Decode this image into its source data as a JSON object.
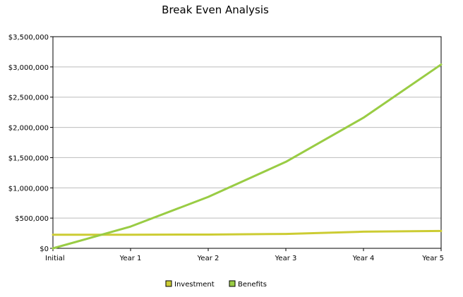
{
  "chart_data": {
    "type": "line",
    "title": "Break Even Analysis",
    "xlabel": "",
    "ylabel": "",
    "categories": [
      "Initial",
      "Year 1",
      "Year 2",
      "Year 3",
      "Year 4",
      "Year 5"
    ],
    "series": [
      {
        "name": "Investment",
        "color": "#cccc33",
        "values": [
          225000,
          225000,
          228000,
          238000,
          275000,
          288000
        ]
      },
      {
        "name": "Benefits",
        "color": "#99cc44",
        "values": [
          0,
          360000,
          850000,
          1430000,
          2160000,
          3040000
        ]
      }
    ],
    "ylim": [
      0,
      3500000
    ],
    "yticks": [
      0,
      500000,
      1000000,
      1500000,
      2000000,
      2500000,
      3000000,
      3500000
    ],
    "ytick_labels": [
      "$0",
      "$500,000",
      "$1,000,000",
      "$1,500,000",
      "$2,000,000",
      "$2,500,000",
      "$3,000,000",
      "$3,500,000"
    ],
    "grid": true,
    "legend_position": "bottom-center"
  }
}
